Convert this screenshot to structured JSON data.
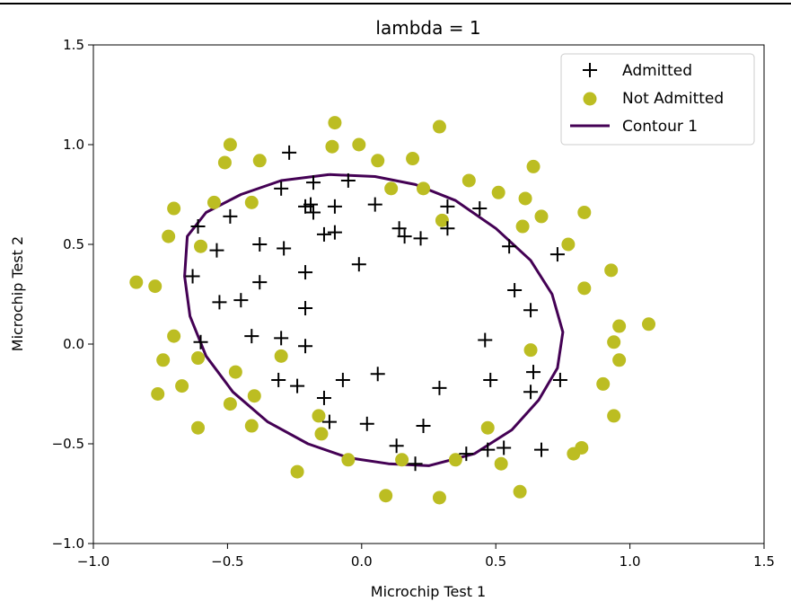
{
  "chart_data": {
    "type": "scatter",
    "title": "lambda = 1",
    "xlabel": "Microchip Test 1",
    "ylabel": "Microchip Test 2",
    "xlim": [
      -1.0,
      1.5
    ],
    "ylim": [
      -1.0,
      1.5
    ],
    "xticks": [
      -1.0,
      -0.5,
      0.0,
      0.5,
      1.0,
      1.5
    ],
    "yticks": [
      -1.0,
      -0.5,
      0.0,
      0.5,
      1.0,
      1.5
    ],
    "xtick_labels": [
      "−1.0",
      "−0.5",
      "0.0",
      "0.5",
      "1.0",
      "1.5"
    ],
    "ytick_labels": [
      "−1.0",
      "−0.5",
      "0.0",
      "0.5",
      "1.0",
      "1.5"
    ],
    "grid": false,
    "legend_position": "top-right",
    "series": [
      {
        "name": "Admitted",
        "marker": "plus",
        "color": "#000000",
        "points": [
          [
            -0.27,
            0.96
          ],
          [
            -0.3,
            0.78
          ],
          [
            -0.18,
            0.81
          ],
          [
            -0.05,
            0.82
          ],
          [
            -0.1,
            0.69
          ],
          [
            -0.19,
            0.7
          ],
          [
            -0.21,
            0.69
          ],
          [
            -0.18,
            0.66
          ],
          [
            0.05,
            0.7
          ],
          [
            0.32,
            0.69
          ],
          [
            0.44,
            0.68
          ],
          [
            -0.49,
            0.64
          ],
          [
            -0.61,
            0.59
          ],
          [
            -0.54,
            0.47
          ],
          [
            -0.38,
            0.5
          ],
          [
            -0.29,
            0.48
          ],
          [
            -0.14,
            0.55
          ],
          [
            -0.1,
            0.56
          ],
          [
            0.14,
            0.58
          ],
          [
            0.16,
            0.54
          ],
          [
            0.22,
            0.53
          ],
          [
            0.32,
            0.58
          ],
          [
            0.55,
            0.49
          ],
          [
            0.73,
            0.45
          ],
          [
            -0.63,
            0.34
          ],
          [
            -0.38,
            0.31
          ],
          [
            -0.21,
            0.36
          ],
          [
            -0.01,
            0.4
          ],
          [
            -0.53,
            0.21
          ],
          [
            -0.45,
            0.22
          ],
          [
            -0.21,
            0.18
          ],
          [
            0.57,
            0.27
          ],
          [
            0.63,
            0.17
          ],
          [
            -0.6,
            0.01
          ],
          [
            -0.41,
            0.04
          ],
          [
            -0.3,
            0.03
          ],
          [
            -0.21,
            -0.01
          ],
          [
            0.46,
            0.02
          ],
          [
            -0.31,
            -0.18
          ],
          [
            -0.24,
            -0.21
          ],
          [
            -0.07,
            -0.18
          ],
          [
            0.06,
            -0.15
          ],
          [
            0.29,
            -0.22
          ],
          [
            0.48,
            -0.18
          ],
          [
            0.64,
            -0.14
          ],
          [
            0.74,
            -0.18
          ],
          [
            -0.14,
            -0.27
          ],
          [
            0.63,
            -0.24
          ],
          [
            -0.12,
            -0.39
          ],
          [
            0.02,
            -0.4
          ],
          [
            0.23,
            -0.41
          ],
          [
            0.13,
            -0.51
          ],
          [
            0.2,
            -0.6
          ],
          [
            0.39,
            -0.55
          ],
          [
            0.47,
            -0.53
          ],
          [
            0.53,
            -0.52
          ],
          [
            0.67,
            -0.53
          ]
        ]
      },
      {
        "name": "Not Admitted",
        "marker": "circle",
        "color": "#bcbd22",
        "points": [
          [
            -0.49,
            1.0
          ],
          [
            -0.51,
            0.91
          ],
          [
            -0.38,
            0.92
          ],
          [
            -0.1,
            1.11
          ],
          [
            -0.11,
            0.99
          ],
          [
            -0.01,
            1.0
          ],
          [
            0.06,
            0.92
          ],
          [
            0.19,
            0.93
          ],
          [
            0.29,
            1.09
          ],
          [
            0.4,
            0.82
          ],
          [
            0.51,
            0.76
          ],
          [
            0.61,
            0.73
          ],
          [
            0.64,
            0.89
          ],
          [
            0.67,
            0.64
          ],
          [
            0.83,
            0.66
          ],
          [
            0.11,
            0.78
          ],
          [
            0.23,
            0.78
          ],
          [
            0.3,
            0.62
          ],
          [
            0.6,
            0.59
          ],
          [
            -0.7,
            0.68
          ],
          [
            -0.55,
            0.71
          ],
          [
            -0.41,
            0.71
          ],
          [
            -0.72,
            0.54
          ],
          [
            -0.6,
            0.49
          ],
          [
            0.77,
            0.5
          ],
          [
            -0.84,
            0.31
          ],
          [
            -0.77,
            0.29
          ],
          [
            0.83,
            0.28
          ],
          [
            0.93,
            0.37
          ],
          [
            -0.7,
            0.04
          ],
          [
            0.96,
            0.09
          ],
          [
            1.07,
            0.1
          ],
          [
            0.94,
            0.01
          ],
          [
            -0.61,
            -0.07
          ],
          [
            -0.74,
            -0.08
          ],
          [
            -0.3,
            -0.06
          ],
          [
            0.63,
            -0.03
          ],
          [
            0.96,
            -0.08
          ],
          [
            -0.47,
            -0.14
          ],
          [
            -0.67,
            -0.21
          ],
          [
            -0.76,
            -0.25
          ],
          [
            -0.4,
            -0.26
          ],
          [
            0.9,
            -0.2
          ],
          [
            -0.49,
            -0.3
          ],
          [
            -0.16,
            -0.36
          ],
          [
            -0.61,
            -0.42
          ],
          [
            -0.41,
            -0.41
          ],
          [
            -0.15,
            -0.45
          ],
          [
            0.47,
            -0.42
          ],
          [
            0.94,
            -0.36
          ],
          [
            -0.05,
            -0.58
          ],
          [
            0.15,
            -0.58
          ],
          [
            0.35,
            -0.58
          ],
          [
            0.52,
            -0.6
          ],
          [
            0.82,
            -0.52
          ],
          [
            0.79,
            -0.55
          ],
          [
            -0.24,
            -0.64
          ],
          [
            0.09,
            -0.76
          ],
          [
            0.29,
            -0.77
          ],
          [
            0.59,
            -0.74
          ]
        ]
      },
      {
        "name": "Contour 1",
        "marker": "line",
        "color": "#440154",
        "points": [
          [
            -0.12,
            0.85
          ],
          [
            0.05,
            0.84
          ],
          [
            0.2,
            0.8
          ],
          [
            0.35,
            0.72
          ],
          [
            0.5,
            0.58
          ],
          [
            0.63,
            0.42
          ],
          [
            0.71,
            0.25
          ],
          [
            0.75,
            0.06
          ],
          [
            0.73,
            -0.12
          ],
          [
            0.66,
            -0.28
          ],
          [
            0.56,
            -0.43
          ],
          [
            0.42,
            -0.55
          ],
          [
            0.25,
            -0.61
          ],
          [
            0.1,
            -0.6
          ],
          [
            -0.05,
            -0.57
          ],
          [
            -0.2,
            -0.5
          ],
          [
            -0.35,
            -0.39
          ],
          [
            -0.48,
            -0.24
          ],
          [
            -0.58,
            -0.06
          ],
          [
            -0.64,
            0.14
          ],
          [
            -0.66,
            0.34
          ],
          [
            -0.65,
            0.54
          ],
          [
            -0.58,
            0.66
          ],
          [
            -0.45,
            0.75
          ],
          [
            -0.3,
            0.82
          ],
          [
            -0.12,
            0.85
          ]
        ]
      }
    ]
  }
}
